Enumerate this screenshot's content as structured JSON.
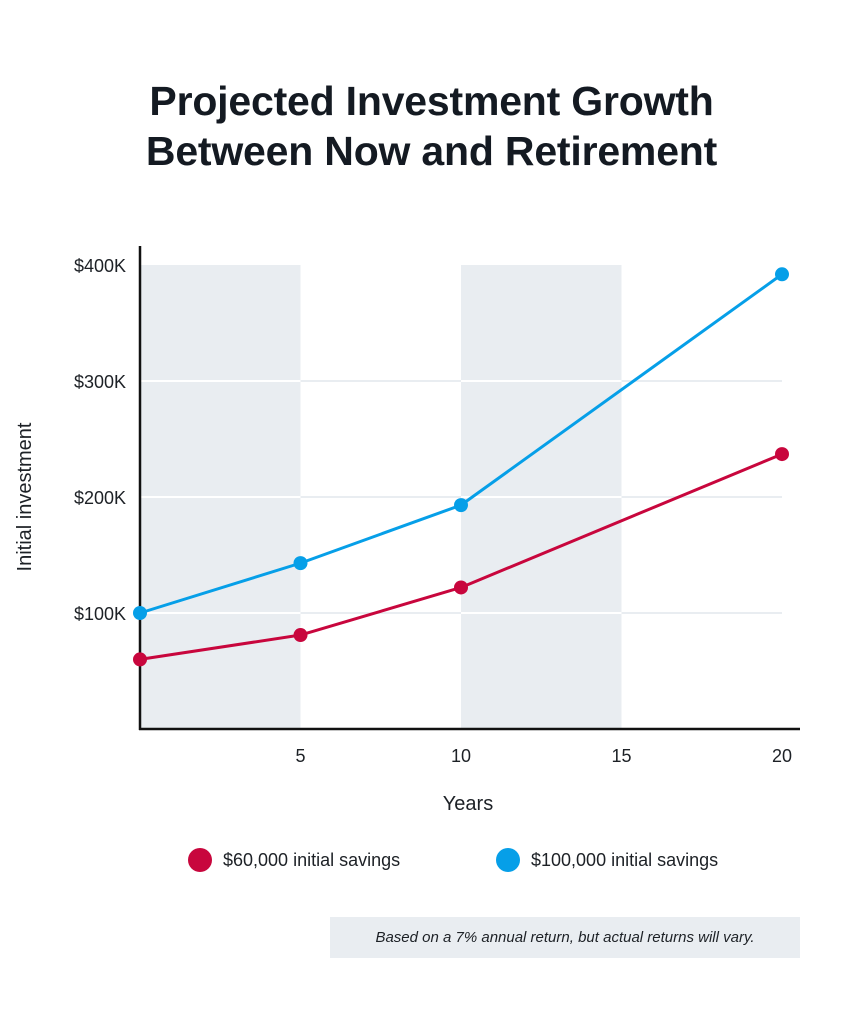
{
  "title": {
    "line1": "Projected Investment Growth",
    "line2": "Between Now and Retirement"
  },
  "legend": [
    {
      "label": "$60,000 initial savings",
      "color": "#c8063d"
    },
    {
      "label": "$100,000 initial savings",
      "color": "#069fe8"
    }
  ],
  "note": "Based on a 7% annual return, but actual returns will vary.",
  "colors": {
    "band": "#e9edf1",
    "grid_outside": "#e9edf1",
    "grid_inside": "#ffffff",
    "axis": "#111111",
    "text": "#1d2126"
  },
  "chart_data": {
    "type": "line",
    "title": "Projected Investment Growth Between Now and Retirement",
    "xlabel": "Years",
    "ylabel": "Initial investment",
    "x": [
      0,
      5,
      10,
      20
    ],
    "xlim": [
      0,
      20.5
    ],
    "xticks": [
      5,
      10,
      15,
      20
    ],
    "xtick_labels": [
      "5",
      "10",
      "15",
      "20"
    ],
    "ylim": [
      0,
      400000
    ],
    "yticks": [
      100000,
      200000,
      300000,
      400000
    ],
    "ytick_labels": [
      "$100K",
      "$200K",
      "$300K",
      "$400K"
    ],
    "grid": "horizontal",
    "shaded_bands": [
      [
        0,
        5
      ],
      [
        10,
        15
      ]
    ],
    "legend_position": "bottom",
    "series": [
      {
        "name": "$60,000 initial savings",
        "color": "#c8063d",
        "values": [
          60000,
          81000,
          122000,
          237000
        ]
      },
      {
        "name": "$100,000 initial savings",
        "color": "#069fe8",
        "values": [
          100000,
          143000,
          193000,
          392000
        ]
      }
    ],
    "annotation": "Based on a 7% annual return, but actual returns will vary."
  }
}
